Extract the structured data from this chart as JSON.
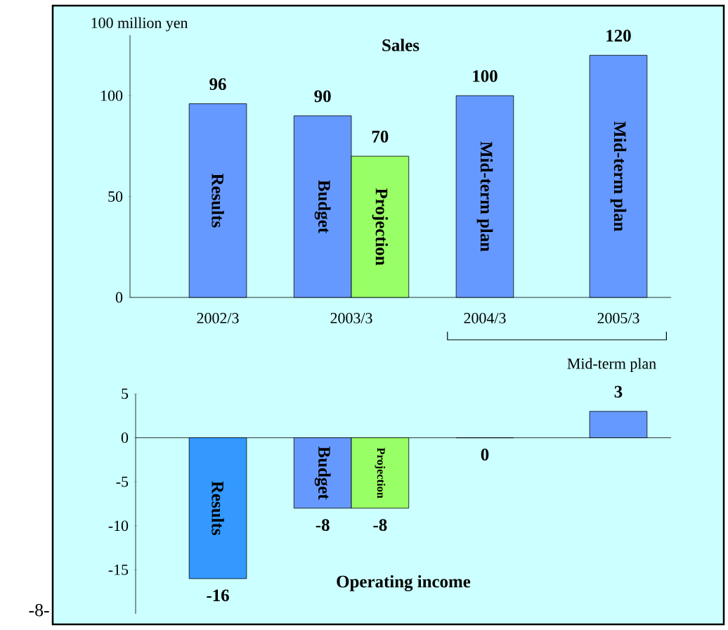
{
  "chart_data": [
    {
      "type": "bar",
      "title": "Sales",
      "ylabel": "100 million yen",
      "categories": [
        "2002/3",
        "2003/3",
        "2004/3",
        "2005/3"
      ],
      "series": [
        {
          "name": "Results",
          "color": "#6699ff",
          "values": [
            96,
            null,
            null,
            null
          ]
        },
        {
          "name": "Budget",
          "color": "#6699ff",
          "values": [
            null,
            90,
            null,
            null
          ]
        },
        {
          "name": "Projection",
          "color": "#99ff66",
          "values": [
            null,
            70,
            null,
            null
          ]
        },
        {
          "name": "Mid-term plan",
          "color": "#6699ff",
          "values": [
            null,
            null,
            100,
            120
          ]
        }
      ],
      "ylim": [
        0,
        130
      ],
      "yticks": [
        0,
        50,
        100
      ],
      "data_labels": true,
      "annotations": [
        "Mid-term plan"
      ]
    },
    {
      "type": "bar",
      "title": "Operating income",
      "categories": [
        "2002/3",
        "2003/3",
        "2004/3",
        "2005/3"
      ],
      "series": [
        {
          "name": "Results",
          "color": "#3399ff",
          "values": [
            -16,
            null,
            null,
            null
          ]
        },
        {
          "name": "Budget",
          "color": "#6699ff",
          "values": [
            null,
            -8,
            null,
            null
          ]
        },
        {
          "name": "Projection",
          "color": "#99ff66",
          "values": [
            null,
            -8,
            null,
            null
          ]
        },
        {
          "color": "#6699ff",
          "values": [
            null,
            null,
            0,
            3
          ]
        }
      ],
      "ylim": [
        -20,
        5
      ],
      "yticks": [
        -15,
        -10,
        -5,
        0,
        5
      ],
      "data_labels": true,
      "tick_labels": "y",
      "annotations": [
        "-8-"
      ]
    }
  ]
}
